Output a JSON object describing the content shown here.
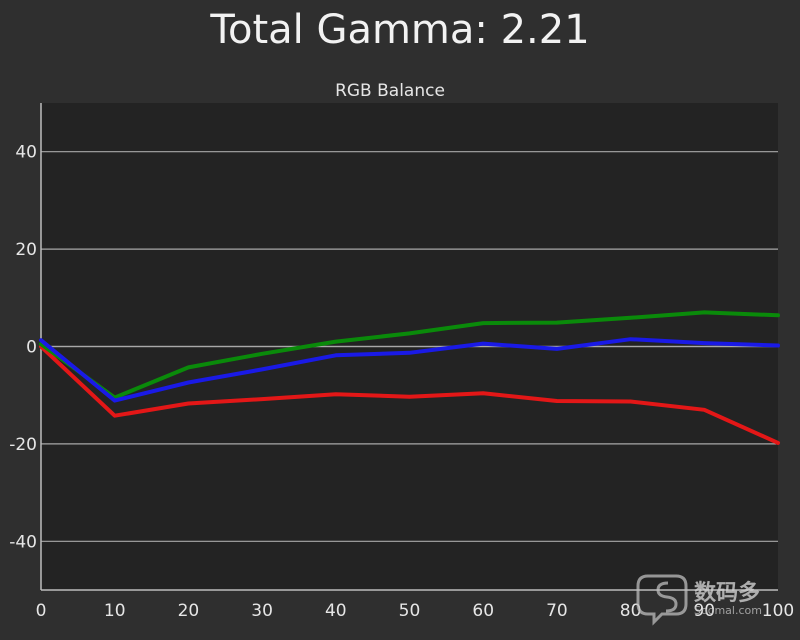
{
  "chart_data": {
    "type": "line",
    "title": "Total Gamma: 2.21",
    "subtitle": "RGB Balance",
    "xlabel": "",
    "ylabel": "",
    "x": [
      0,
      10,
      20,
      30,
      40,
      50,
      60,
      70,
      80,
      90,
      100
    ],
    "xlim": [
      0,
      100
    ],
    "ylim": [
      -50,
      50
    ],
    "xticks": [
      0,
      10,
      20,
      30,
      40,
      50,
      60,
      70,
      80,
      90,
      100
    ],
    "yticks": [
      -40,
      -20,
      0,
      20,
      40
    ],
    "grid": "horizontal",
    "legend": "none",
    "series": [
      {
        "color": "#e31717",
        "values": [
          0,
          -14.2,
          -11.7,
          -10.8,
          -9.8,
          -10.3,
          -9.6,
          -11.2,
          -11.3,
          -13.0,
          -19.8
        ]
      },
      {
        "color": "#0a8a0a",
        "values": [
          0.5,
          -10.5,
          -4.3,
          -1.5,
          1.0,
          2.7,
          4.8,
          4.9,
          5.9,
          7.0,
          6.4
        ]
      },
      {
        "color": "#1a1ae6",
        "values": [
          1.3,
          -11.1,
          -7.4,
          -4.7,
          -1.8,
          -1.3,
          0.6,
          -0.5,
          1.5,
          0.7,
          0.2
        ]
      }
    ]
  },
  "watermark": {
    "text": "数码多",
    "subtext": "Soomal.com"
  }
}
